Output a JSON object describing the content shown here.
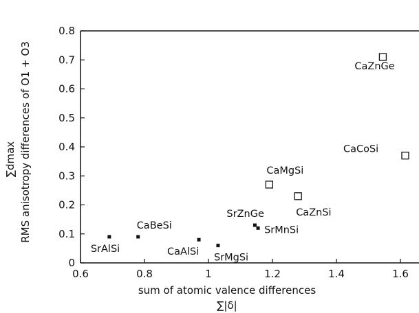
{
  "chart_data": {
    "type": "scatter",
    "xlabel": "sum of atomic valence differences",
    "xlabel_symbol": "∑|δ|",
    "ylabel": "RMS anisotropy differences of O1 + O3",
    "ylabel_symbol": "∑dmax",
    "xlim": [
      0.6,
      1.7
    ],
    "ylim": [
      0,
      0.8
    ],
    "xticks": [
      0.6,
      0.8,
      1,
      1.2,
      1.4,
      1.6
    ],
    "xtick_labels": [
      "0.6",
      "0.8",
      "1",
      "1.2",
      "1.4",
      "1.6"
    ],
    "yticks": [
      0,
      0.1,
      0.2,
      0.3,
      0.4,
      0.5,
      0.6,
      0.7,
      0.8
    ],
    "ytick_labels": [
      "0",
      "0.1",
      "0.2",
      "0.3",
      "0.4",
      "0.5",
      "0.6",
      "0.7",
      "0.8"
    ],
    "grid": false,
    "series": [
      {
        "marker": "filled-square",
        "points": [
          {
            "label": "SrAlSi",
            "x": 0.69,
            "y": 0.09
          },
          {
            "label": "CaBeSi",
            "x": 0.78,
            "y": 0.09
          },
          {
            "label": "CaAlSi",
            "x": 0.97,
            "y": 0.08
          },
          {
            "label": "SrMgSi",
            "x": 1.03,
            "y": 0.06
          },
          {
            "label": "SrZnGe",
            "x": 1.145,
            "y": 0.13
          },
          {
            "label": "SrMnSi",
            "x": 1.155,
            "y": 0.12
          }
        ]
      },
      {
        "marker": "open-square",
        "points": [
          {
            "label": "CaMgSi",
            "x": 1.19,
            "y": 0.27
          },
          {
            "label": "CaZnSi",
            "x": 1.28,
            "y": 0.23
          },
          {
            "label": "CaCoSi",
            "x": 1.615,
            "y": 0.37
          },
          {
            "label": "CaZnGe",
            "x": 1.545,
            "y": 0.71
          }
        ]
      }
    ]
  }
}
